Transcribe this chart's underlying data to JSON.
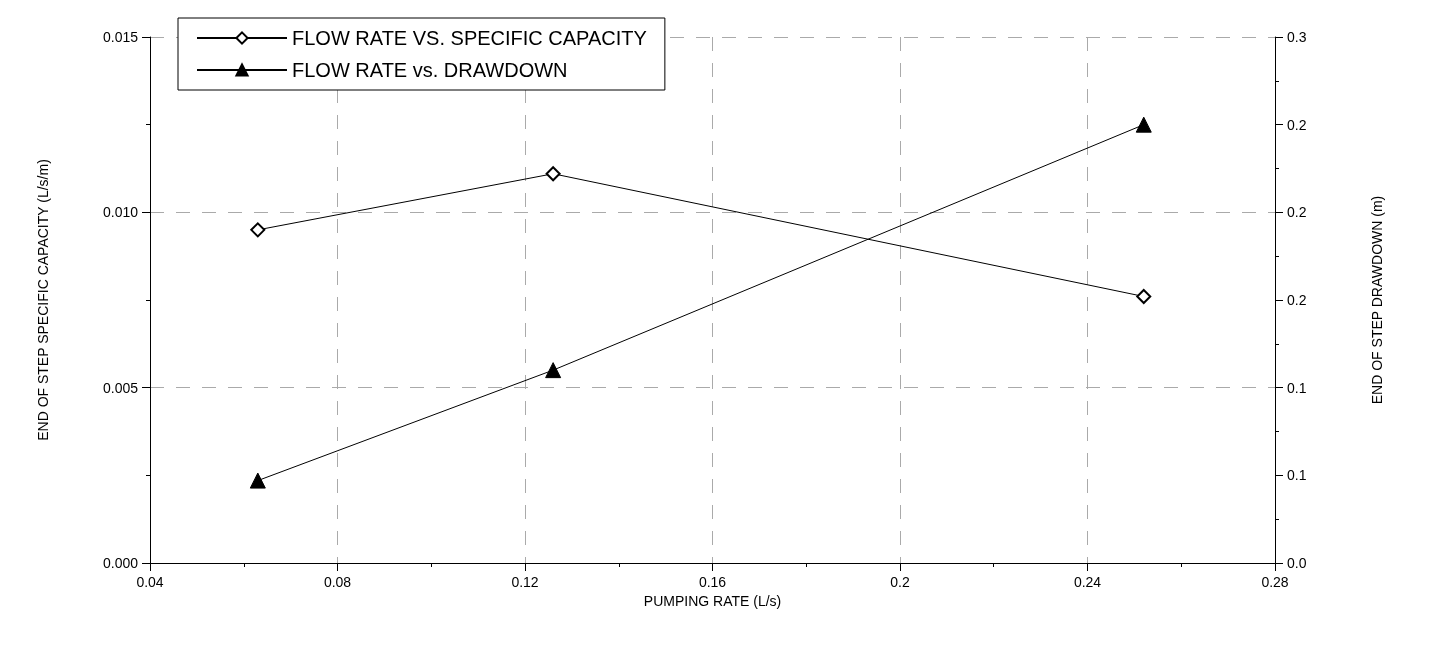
{
  "chart_data": {
    "type": "line",
    "xlabel": "PUMPING RATE (L/s)",
    "ylabel": "END OF STEP SPECIFIC CAPACITY (L/s/m)",
    "y2label": "END OF STEP DRAWDOWN (m)",
    "series": [
      {
        "name": "FLOW RATE VS. SPECIFIC CAPACITY",
        "color": "#000000",
        "marker": "diamond",
        "x": [
          0.063,
          0.126,
          0.252
        ],
        "values": [
          0.0095,
          0.0111,
          0.0076
        ]
      },
      {
        "name": "FLOW RATE vs. DRAWDOWN",
        "color": "#000000",
        "marker": "triangle",
        "axis": "y2",
        "x": [
          0.063,
          0.126,
          0.252
        ],
        "values": [
          0.047,
          0.11,
          0.25
        ]
      }
    ],
    "xlim": [
      0.04,
      0.28
    ],
    "xticks": [
      0.04,
      0.08,
      0.12,
      0.16,
      0.2,
      0.24,
      0.28
    ],
    "ylim": [
      0,
      0.015
    ],
    "yticks": [
      {
        "value": 0,
        "label": "0.000"
      },
      {
        "value": 0.005,
        "label": "0.005"
      },
      {
        "value": 0.01,
        "label": "0.010"
      },
      {
        "value": 0.015,
        "label": "0.015"
      }
    ],
    "y2lim": [
      0,
      0.3
    ],
    "y2ticks": [
      {
        "value": 0,
        "label": "0.0"
      },
      {
        "value": 0.05,
        "label": "0.1"
      },
      {
        "value": 0.1,
        "label": "0.1"
      },
      {
        "value": 0.15,
        "label": "0.2"
      },
      {
        "value": 0.2,
        "label": "0.2"
      },
      {
        "value": 0.25,
        "label": "0.2"
      },
      {
        "value": 0.3,
        "label": "0.3"
      }
    ],
    "grid": true,
    "legend": "top left",
    "line_style": "solid"
  }
}
